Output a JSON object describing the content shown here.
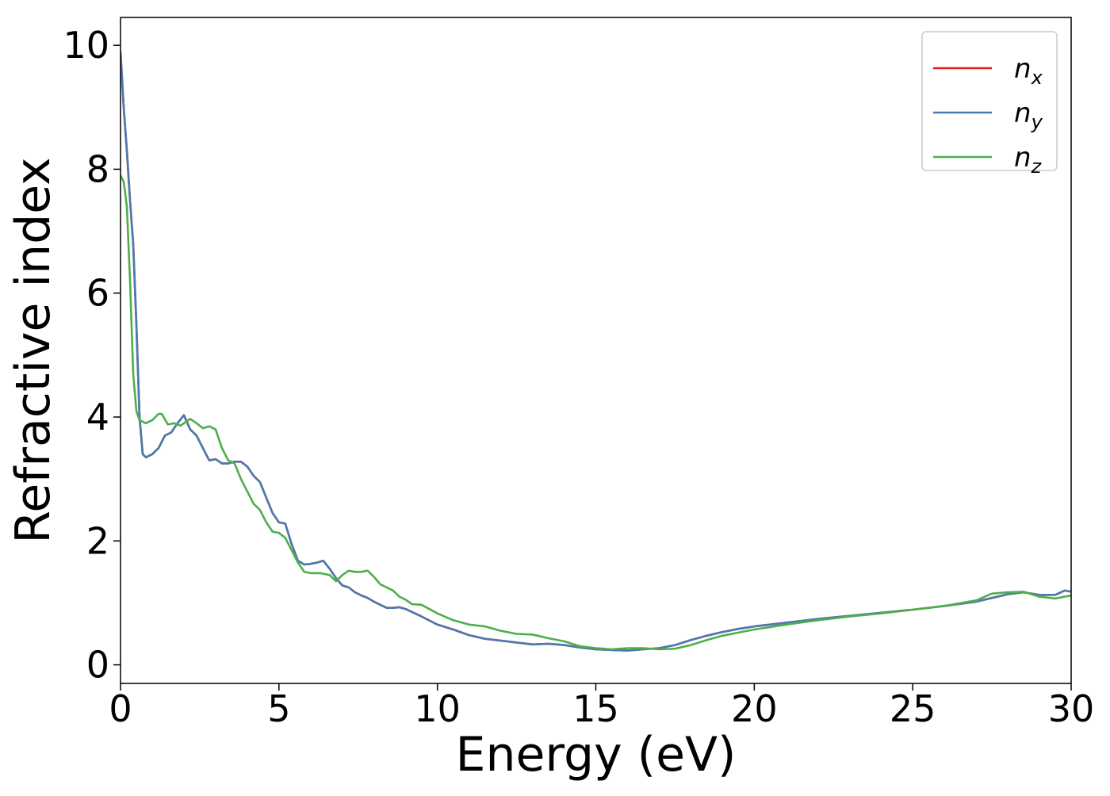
{
  "chart_data": {
    "type": "line",
    "title": "",
    "xlabel": "Energy (eV)",
    "ylabel": "Refractive index",
    "xlim": [
      0,
      30
    ],
    "ylim": [
      -0.3,
      10.45
    ],
    "xticks": [
      0,
      5,
      10,
      15,
      20,
      25,
      30
    ],
    "yticks": [
      0,
      2,
      4,
      6,
      8,
      10
    ],
    "grid": false,
    "legend_position": "top-right",
    "series": [
      {
        "name": "n_x",
        "label_base": "n",
        "label_sub": "x",
        "color": "#e31a1c",
        "x": [
          0,
          0.1,
          0.2,
          0.3,
          0.4,
          0.5,
          0.6,
          0.7,
          0.8,
          1.0,
          1.2,
          1.4,
          1.6,
          1.8,
          2.0,
          2.2,
          2.4,
          2.6,
          2.8,
          3.0,
          3.2,
          3.4,
          3.6,
          3.8,
          4.0,
          4.2,
          4.4,
          4.6,
          4.8,
          5.0,
          5.2,
          5.4,
          5.6,
          5.8,
          6.0,
          6.2,
          6.4,
          6.6,
          6.8,
          7.0,
          7.2,
          7.4,
          7.6,
          7.8,
          8.0,
          8.2,
          8.4,
          8.6,
          8.8,
          9.0,
          9.5,
          10.0,
          10.5,
          11.0,
          11.5,
          12.0,
          12.5,
          13.0,
          13.5,
          14.0,
          14.5,
          15.0,
          15.5,
          16.0,
          16.5,
          17.0,
          17.5,
          18.0,
          18.5,
          19.0,
          19.5,
          20.0,
          21.0,
          22.0,
          23.0,
          24.0,
          25.0,
          26.0,
          27.0,
          27.5,
          28.0,
          28.5,
          29.0,
          29.5,
          29.8,
          30.0
        ],
        "y": [
          9.9,
          9.0,
          8.3,
          7.5,
          6.8,
          5.5,
          4.0,
          3.4,
          3.35,
          3.4,
          3.5,
          3.7,
          3.75,
          3.9,
          4.03,
          3.8,
          3.7,
          3.5,
          3.3,
          3.32,
          3.25,
          3.25,
          3.28,
          3.28,
          3.2,
          3.05,
          2.95,
          2.7,
          2.45,
          2.3,
          2.28,
          1.95,
          1.68,
          1.62,
          1.63,
          1.65,
          1.68,
          1.55,
          1.4,
          1.28,
          1.25,
          1.17,
          1.12,
          1.08,
          1.02,
          0.97,
          0.92,
          0.92,
          0.93,
          0.9,
          0.78,
          0.65,
          0.57,
          0.48,
          0.42,
          0.39,
          0.36,
          0.33,
          0.34,
          0.32,
          0.28,
          0.25,
          0.24,
          0.23,
          0.25,
          0.27,
          0.32,
          0.4,
          0.47,
          0.53,
          0.58,
          0.62,
          0.68,
          0.74,
          0.79,
          0.84,
          0.89,
          0.95,
          1.02,
          1.08,
          1.14,
          1.17,
          1.13,
          1.13,
          1.2,
          1.18
        ]
      },
      {
        "name": "n_y",
        "label_base": "n",
        "label_sub": "y",
        "color": "#4a7ab0",
        "x": [
          0,
          0.1,
          0.2,
          0.3,
          0.4,
          0.5,
          0.6,
          0.7,
          0.8,
          1.0,
          1.2,
          1.4,
          1.6,
          1.8,
          2.0,
          2.2,
          2.4,
          2.6,
          2.8,
          3.0,
          3.2,
          3.4,
          3.6,
          3.8,
          4.0,
          4.2,
          4.4,
          4.6,
          4.8,
          5.0,
          5.2,
          5.4,
          5.6,
          5.8,
          6.0,
          6.2,
          6.4,
          6.6,
          6.8,
          7.0,
          7.2,
          7.4,
          7.6,
          7.8,
          8.0,
          8.2,
          8.4,
          8.6,
          8.8,
          9.0,
          9.5,
          10.0,
          10.5,
          11.0,
          11.5,
          12.0,
          12.5,
          13.0,
          13.5,
          14.0,
          14.5,
          15.0,
          15.5,
          16.0,
          16.5,
          17.0,
          17.5,
          18.0,
          18.5,
          19.0,
          19.5,
          20.0,
          21.0,
          22.0,
          23.0,
          24.0,
          25.0,
          26.0,
          27.0,
          27.5,
          28.0,
          28.5,
          29.0,
          29.5,
          29.8,
          30.0
        ],
        "y": [
          9.9,
          9.0,
          8.3,
          7.5,
          6.8,
          5.5,
          4.0,
          3.4,
          3.35,
          3.4,
          3.5,
          3.7,
          3.75,
          3.9,
          4.03,
          3.8,
          3.7,
          3.5,
          3.3,
          3.32,
          3.25,
          3.25,
          3.28,
          3.28,
          3.2,
          3.05,
          2.95,
          2.7,
          2.45,
          2.3,
          2.28,
          1.95,
          1.68,
          1.62,
          1.63,
          1.65,
          1.68,
          1.55,
          1.4,
          1.28,
          1.25,
          1.17,
          1.12,
          1.08,
          1.02,
          0.97,
          0.92,
          0.92,
          0.93,
          0.9,
          0.78,
          0.65,
          0.57,
          0.48,
          0.42,
          0.39,
          0.36,
          0.33,
          0.34,
          0.32,
          0.28,
          0.25,
          0.24,
          0.23,
          0.25,
          0.27,
          0.32,
          0.4,
          0.47,
          0.53,
          0.58,
          0.62,
          0.68,
          0.74,
          0.79,
          0.84,
          0.89,
          0.95,
          1.02,
          1.08,
          1.14,
          1.17,
          1.13,
          1.13,
          1.2,
          1.18
        ]
      },
      {
        "name": "n_z",
        "label_base": "n",
        "label_sub": "z",
        "color": "#4daf4a",
        "x": [
          0,
          0.1,
          0.2,
          0.3,
          0.4,
          0.5,
          0.6,
          0.8,
          1.0,
          1.2,
          1.3,
          1.5,
          1.7,
          1.9,
          2.0,
          2.2,
          2.4,
          2.6,
          2.8,
          3.0,
          3.2,
          3.4,
          3.6,
          3.8,
          4.0,
          4.2,
          4.4,
          4.6,
          4.8,
          5.0,
          5.2,
          5.4,
          5.6,
          5.8,
          6.0,
          6.3,
          6.6,
          6.8,
          7.0,
          7.2,
          7.4,
          7.6,
          7.8,
          8.0,
          8.2,
          8.4,
          8.6,
          8.8,
          9.0,
          9.2,
          9.5,
          10.0,
          10.5,
          11.0,
          11.5,
          12.0,
          12.5,
          13.0,
          13.5,
          14.0,
          14.5,
          15.0,
          15.5,
          16.0,
          16.5,
          17.0,
          17.5,
          18.0,
          18.5,
          19.0,
          19.5,
          20.0,
          21.0,
          22.0,
          23.0,
          24.0,
          25.0,
          26.0,
          27.0,
          27.5,
          28.0,
          28.5,
          29.0,
          29.5,
          30.0
        ],
        "y": [
          7.9,
          7.8,
          7.4,
          6.2,
          4.7,
          4.1,
          3.95,
          3.9,
          3.95,
          4.05,
          4.05,
          3.88,
          3.9,
          3.86,
          3.9,
          3.97,
          3.9,
          3.82,
          3.85,
          3.8,
          3.5,
          3.3,
          3.25,
          3.0,
          2.8,
          2.6,
          2.5,
          2.3,
          2.15,
          2.13,
          2.05,
          1.85,
          1.65,
          1.5,
          1.48,
          1.48,
          1.45,
          1.35,
          1.45,
          1.52,
          1.5,
          1.5,
          1.52,
          1.42,
          1.3,
          1.25,
          1.2,
          1.1,
          1.05,
          0.98,
          0.97,
          0.83,
          0.72,
          0.65,
          0.62,
          0.55,
          0.5,
          0.49,
          0.43,
          0.38,
          0.3,
          0.27,
          0.25,
          0.27,
          0.27,
          0.25,
          0.26,
          0.32,
          0.4,
          0.47,
          0.52,
          0.57,
          0.65,
          0.72,
          0.78,
          0.83,
          0.89,
          0.95,
          1.04,
          1.15,
          1.17,
          1.18,
          1.1,
          1.07,
          1.12
        ]
      }
    ]
  }
}
